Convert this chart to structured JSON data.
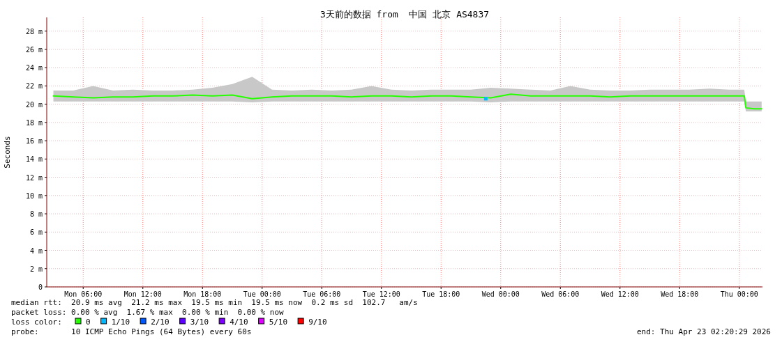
{
  "chart_data": {
    "type": "line",
    "title": "3天前的数据 from  中国 北京 AS4837",
    "ylabel": "Seconds",
    "legend_title": "loss color:",
    "legend": "bottom",
    "grid": true,
    "xlim": [
      "2026-04-20T02:20",
      "2026-04-23T02:20"
    ],
    "xticks": [
      {
        "value": "2026-04-20T06:00",
        "label": "Mon 06:00"
      },
      {
        "value": "2026-04-20T12:00",
        "label": "Mon 12:00"
      },
      {
        "value": "2026-04-20T18:00",
        "label": "Mon 18:00"
      },
      {
        "value": "2026-04-21T00:00",
        "label": "Tue 00:00"
      },
      {
        "value": "2026-04-21T06:00",
        "label": "Tue 06:00"
      },
      {
        "value": "2026-04-21T12:00",
        "label": "Tue 12:00"
      },
      {
        "value": "2026-04-21T18:00",
        "label": "Tue 18:00"
      },
      {
        "value": "2026-04-22T00:00",
        "label": "Wed 00:00"
      },
      {
        "value": "2026-04-22T06:00",
        "label": "Wed 06:00"
      },
      {
        "value": "2026-04-22T12:00",
        "label": "Wed 12:00"
      },
      {
        "value": "2026-04-22T18:00",
        "label": "Wed 18:00"
      },
      {
        "value": "2026-04-23T00:00",
        "label": "Thu 00:00"
      }
    ],
    "ylim": [
      0,
      29.5
    ],
    "yticks": [
      0,
      {
        "value": 2,
        "label": "2 m"
      },
      {
        "value": 4,
        "label": "4 m"
      },
      {
        "value": 6,
        "label": "6 m"
      },
      {
        "value": 8,
        "label": "8 m"
      },
      {
        "value": 10,
        "label": "10 m"
      },
      {
        "value": 12,
        "label": "12 m"
      },
      {
        "value": 14,
        "label": "14 m"
      },
      {
        "value": 16,
        "label": "16 m"
      },
      {
        "value": 18,
        "label": "18 m"
      },
      {
        "value": 20,
        "label": "20 m"
      },
      {
        "value": 22,
        "label": "22 m"
      },
      {
        "value": 24,
        "label": "24 m"
      },
      {
        "value": 26,
        "label": "26 m"
      },
      {
        "value": 28,
        "label": "28 m"
      }
    ],
    "series": [
      {
        "name": "0",
        "color": "#26ff00",
        "x": [
          "2026-04-20T03:00",
          "2026-04-20T05:00",
          "2026-04-20T07:00",
          "2026-04-20T09:00",
          "2026-04-20T11:00",
          "2026-04-20T13:00",
          "2026-04-20T15:00",
          "2026-04-20T17:00",
          "2026-04-20T19:00",
          "2026-04-20T21:00",
          "2026-04-20T23:00",
          "2026-04-21T01:00",
          "2026-04-21T03:00",
          "2026-04-21T05:00",
          "2026-04-21T07:00",
          "2026-04-21T09:00",
          "2026-04-21T11:00",
          "2026-04-21T13:00",
          "2026-04-21T15:00",
          "2026-04-21T17:00",
          "2026-04-21T19:00",
          "2026-04-21T21:00",
          "2026-04-21T23:00",
          "2026-04-22T01:00",
          "2026-04-22T03:00",
          "2026-04-22T05:00",
          "2026-04-22T07:00",
          "2026-04-22T09:00",
          "2026-04-22T11:00",
          "2026-04-22T13:00",
          "2026-04-22T15:00",
          "2026-04-22T17:00",
          "2026-04-22T19:00",
          "2026-04-22T21:00",
          "2026-04-22T23:00",
          "2026-04-23T00:30",
          "2026-04-23T00:40",
          "2026-04-23T01:30",
          "2026-04-23T02:15"
        ],
        "values": [
          20.9,
          20.8,
          20.7,
          20.8,
          20.8,
          20.9,
          20.9,
          21.0,
          20.9,
          21.0,
          20.6,
          20.8,
          20.9,
          20.9,
          20.9,
          20.8,
          20.9,
          20.9,
          20.8,
          20.9,
          20.9,
          20.8,
          20.7,
          21.1,
          20.9,
          20.9,
          20.9,
          20.9,
          20.8,
          20.9,
          20.9,
          20.9,
          20.9,
          20.9,
          20.9,
          20.9,
          19.6,
          19.5,
          19.5
        ],
        "lower": [
          20.3,
          20.3,
          20.3,
          20.3,
          20.3,
          20.3,
          20.3,
          20.3,
          20.3,
          20.3,
          20.2,
          20.3,
          20.3,
          20.3,
          20.3,
          20.3,
          20.3,
          20.3,
          20.3,
          20.3,
          20.3,
          20.3,
          20.2,
          20.3,
          20.3,
          20.3,
          20.3,
          20.3,
          20.3,
          20.3,
          20.3,
          20.3,
          20.3,
          20.3,
          20.3,
          20.3,
          19.2,
          19.2,
          19.2
        ],
        "upper": [
          21.5,
          21.5,
          22.0,
          21.5,
          21.6,
          21.5,
          21.5,
          21.6,
          21.8,
          22.2,
          23.0,
          21.6,
          21.5,
          21.6,
          21.5,
          21.6,
          22.0,
          21.6,
          21.5,
          21.6,
          21.6,
          21.6,
          21.8,
          21.7,
          21.6,
          21.5,
          22.0,
          21.6,
          21.5,
          21.5,
          21.6,
          21.6,
          21.6,
          21.7,
          21.6,
          21.6,
          20.3,
          20.3,
          20.3
        ]
      },
      {
        "name": "1/10",
        "color": "#00b8ff",
        "x": [
          "2026-04-21T22:30"
        ],
        "values": [
          20.6
        ],
        "marker": "square"
      },
      {
        "name": "2/10",
        "color": "#0059ff"
      },
      {
        "name": "3/10",
        "color": "#5e00ff"
      },
      {
        "name": "4/10",
        "color": "#7e00ff"
      },
      {
        "name": "5/10",
        "color": "#dd00ff"
      },
      {
        "name": "9/10",
        "color": "#ff0000"
      }
    ],
    "annotations": [
      "median rtt:  20.9 ms avg  21.2 ms max  19.5 ms min  19.5 ms now  0.2 ms sd  102.7   am/s",
      "packet loss: 0.00 % avg  1.67 % max  0.00 % min  0.00 % now",
      "probe:       10 ICMP Echo Pings (64 Bytes) every 60s",
      "end: Thu Apr 23 02:20:29 2026"
    ]
  }
}
